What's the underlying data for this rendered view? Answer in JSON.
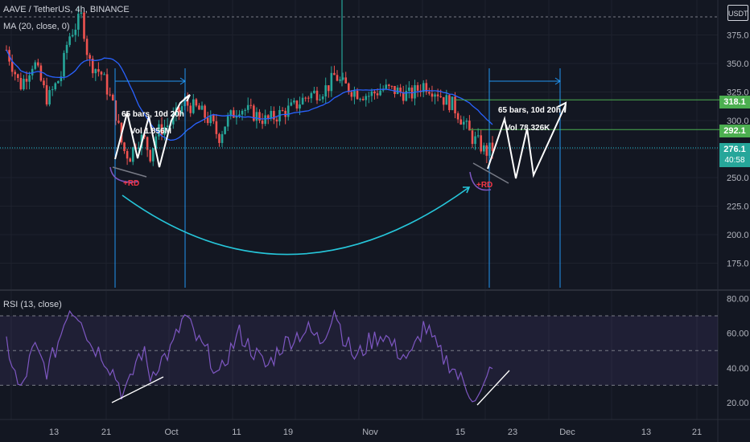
{
  "header": {
    "title": "AAVE / TetherUS, 4h, BINANCE",
    "ma_label": "MA (20, close, 0)",
    "currency": "USDT"
  },
  "rsi": {
    "label": "RSI (13, close)"
  },
  "price_tags": {
    "upper_target": "318.1",
    "lower_target": "292.1",
    "current": "276.1",
    "countdown": "40:58"
  },
  "annotations": {
    "left_bars": "65 bars, 10d 20h",
    "left_vol": "Vol 1.856M",
    "right_bars": "65 bars, 10d 20h",
    "right_vol": "Vol 78.326K",
    "rd_left": "+RD",
    "rd_right": "+RD"
  },
  "colors": {
    "background": "#131722",
    "up": "#26a69a",
    "down": "#ef5350",
    "ma": "#2962ff",
    "rsi": "#7e57c2",
    "fib_line": "#4caf50",
    "measure": "#2196f3",
    "arc": "#26c6da",
    "rd_text": "#f23645",
    "current_price": "#26c6da"
  },
  "chart_data": [
    {
      "type": "candlestick",
      "title": "AAVE / TetherUS, 4h, BINANCE",
      "ylim": [
        155,
        400
      ],
      "y_ticks": [
        175,
        200,
        225,
        250,
        275,
        300,
        325,
        350,
        375
      ],
      "x_ticks": [
        "13",
        "21",
        "Oct",
        "11",
        "19",
        "Nov",
        "15",
        "23",
        "Dec",
        "13",
        "21"
      ],
      "price_path": [
        [
          0,
          362
        ],
        [
          2,
          330
        ],
        [
          4,
          352
        ],
        [
          6,
          318
        ],
        [
          8,
          340
        ],
        [
          9,
          372
        ],
        [
          11,
          392
        ],
        [
          12,
          352
        ],
        [
          14,
          340
        ],
        [
          16,
          305
        ],
        [
          17,
          275
        ],
        [
          18,
          268
        ],
        [
          19,
          282
        ],
        [
          20,
          285
        ],
        [
          21,
          270
        ],
        [
          22,
          290
        ],
        [
          24,
          298
        ],
        [
          26,
          315
        ],
        [
          28,
          310
        ],
        [
          30,
          298
        ],
        [
          31,
          285
        ],
        [
          32,
          298
        ],
        [
          34,
          312
        ],
        [
          36,
          306
        ],
        [
          38,
          300
        ],
        [
          40,
          306
        ],
        [
          42,
          312
        ],
        [
          44,
          322
        ],
        [
          46,
          326
        ],
        [
          47,
          330
        ],
        [
          48,
          340
        ],
        [
          49,
          332
        ],
        [
          51,
          325
        ],
        [
          53,
          322
        ],
        [
          55,
          328
        ],
        [
          57,
          326
        ],
        [
          59,
          322
        ],
        [
          61,
          332
        ],
        [
          63,
          325
        ],
        [
          64,
          318
        ],
        [
          65,
          315
        ],
        [
          66,
          306
        ],
        [
          67,
          296
        ],
        [
          68,
          285
        ],
        [
          69,
          280
        ],
        [
          70,
          272
        ],
        [
          71,
          276
        ]
      ],
      "ma_label": "MA (20, close, 0)",
      "current_price": 276.1,
      "levels": [
        318.1,
        292.1
      ],
      "annotations": [
        "65 bars, 10d 20h",
        "Vol 1.856M",
        "65 bars, 10d 20h",
        "Vol 78.326K",
        "+RD",
        "+RD"
      ]
    },
    {
      "type": "line",
      "title": "RSI (13, close)",
      "ylim": [
        15,
        82
      ],
      "y_ticks": [
        20,
        40,
        60,
        80
      ],
      "levels": [
        70,
        50,
        30
      ],
      "rsi_path": [
        [
          0,
          55
        ],
        [
          2,
          25
        ],
        [
          4,
          52
        ],
        [
          6,
          38
        ],
        [
          8,
          60
        ],
        [
          9,
          75
        ],
        [
          11,
          70
        ],
        [
          12,
          55
        ],
        [
          14,
          48
        ],
        [
          16,
          35
        ],
        [
          17,
          25
        ],
        [
          18,
          30
        ],
        [
          19,
          45
        ],
        [
          20,
          50
        ],
        [
          21,
          35
        ],
        [
          22,
          42
        ],
        [
          24,
          50
        ],
        [
          26,
          70
        ],
        [
          28,
          55
        ],
        [
          30,
          45
        ],
        [
          31,
          32
        ],
        [
          32,
          45
        ],
        [
          34,
          60
        ],
        [
          36,
          50
        ],
        [
          38,
          40
        ],
        [
          40,
          52
        ],
        [
          42,
          58
        ],
        [
          44,
          62
        ],
        [
          46,
          55
        ],
        [
          47,
          65
        ],
        [
          48,
          75
        ],
        [
          49,
          60
        ],
        [
          51,
          45
        ],
        [
          53,
          55
        ],
        [
          55,
          60
        ],
        [
          57,
          50
        ],
        [
          59,
          45
        ],
        [
          61,
          65
        ],
        [
          63,
          50
        ],
        [
          64,
          45
        ],
        [
          65,
          42
        ],
        [
          66,
          35
        ],
        [
          67,
          30
        ],
        [
          68,
          25
        ],
        [
          69,
          22
        ],
        [
          70,
          30
        ],
        [
          71,
          44
        ]
      ]
    }
  ]
}
